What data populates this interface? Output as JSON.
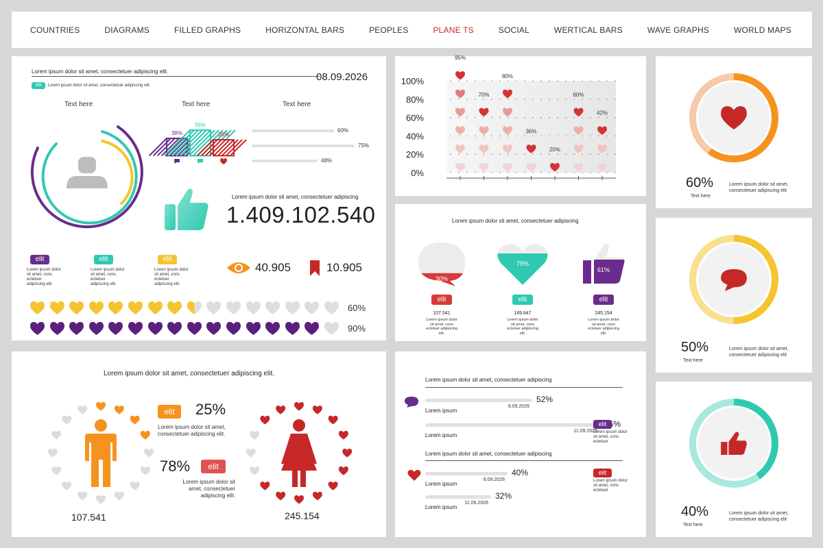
{
  "nav": {
    "items": [
      "COUNTRIES",
      "DIAGRAMS",
      "FILLED GRAPHS",
      "HORIZONTAL BARS",
      "PEOPLES",
      "PLANE TS",
      "SOCIAL",
      "WERTICAL BARS",
      "WAVE GRAPHS",
      "WORLD MAPS"
    ],
    "active_index": 5
  },
  "colors": {
    "purple": "#6a2c8c",
    "teal": "#2fc9b1",
    "yellow": "#f5c431",
    "orange": "#f6931e",
    "red": "#c62828",
    "gray": "#d9d9d9"
  },
  "p1": {
    "header_text": "Lorem ipsum dolor sit amet, consectetuer adipiscing elit.",
    "date": "08.09.2026",
    "badge": "elit",
    "sub_text": "Lorem ipsum dolor sit amet, consectetuer adipiscing elit.",
    "text_here_1": "Text here",
    "text_here_2": "Text here",
    "text_here_3": "Text here",
    "mini_bars": [
      {
        "label": "38%",
        "value": 38,
        "color": "#6a2c8c",
        "icon": "chat-icon"
      },
      {
        "label": "56%",
        "value": 56,
        "color": "#2fc9b1",
        "icon": "thumb-icon"
      },
      {
        "label": "35%",
        "value": 35,
        "color": "#c62828",
        "icon": "heart-icon"
      }
    ],
    "hbars": [
      {
        "label": "60%",
        "value": 60
      },
      {
        "label": "75%",
        "value": 75
      },
      {
        "label": "48%",
        "value": 48
      }
    ],
    "like_text": "Lorem ipsum dolor sit amet, consectetuer adipiscing",
    "big_number": "1.409.102.540",
    "legend": [
      {
        "badge": "elit",
        "color": "#6a2c8c",
        "text": "Lorem ipsum dolor sit amet, cons ectetuer adipiscing elit."
      },
      {
        "badge": "elit",
        "color": "#2fc9b1",
        "text": "Lorem ipsum dolor sit amet, cons ectetuer adipiscing elit."
      },
      {
        "badge": "elit",
        "color": "#f5c431",
        "text": "Lorem ipsum dolor sit amet, cons ectetuer adipiscing elit."
      }
    ],
    "views": "40.905",
    "bookmarks": "10.905",
    "hearts_rows": [
      {
        "label": "60%",
        "filled": 8.5,
        "color": "#f5c431"
      },
      {
        "label": "90%",
        "filled": 15,
        "color": "#5b1f7e"
      }
    ]
  },
  "chart_data": {
    "type": "scatter",
    "title": "",
    "categories": [
      "1",
      "2",
      "3",
      "4",
      "5",
      "6",
      "7"
    ],
    "values": [
      95,
      70,
      80,
      36,
      20,
      60,
      42
    ],
    "value_labels": [
      "95%",
      "70%",
      "80%",
      "36%",
      "20%",
      "60%",
      "42%"
    ],
    "y_ticks": [
      "100%",
      "80%",
      "60%",
      "40%",
      "20%",
      "0%"
    ],
    "ylim": [
      0,
      100
    ],
    "grid": true
  },
  "p2": {
    "title": "Lorem ipsum dolor sit amet, consectetuer adipiscing",
    "items": [
      {
        "shape": "bubble",
        "label": "30%",
        "value": 30,
        "badge": "elit",
        "color": "#d63a3a",
        "number": "107.541",
        "text": "Lorem ipsum dolor sit amet, cons ectetuer adipiscing elit."
      },
      {
        "shape": "heart",
        "label": "75%",
        "value": 75,
        "badge": "elit",
        "color": "#2fc9b1",
        "number": "149.847",
        "text": "Lorem ipsum dolor sit amet, cons ectetuer adipiscing elit."
      },
      {
        "shape": "thumb",
        "label": "61%",
        "value": 61,
        "badge": "elit",
        "color": "#6a2c8c",
        "number": "245.154",
        "text": "Lorem ipsum dolor sit amet, cons ectetuer adipiscing elit."
      }
    ]
  },
  "rings": [
    {
      "value": 60,
      "label": "60%",
      "sub": "Text here",
      "color": "#f6931e",
      "light": "#f6c9a8",
      "icon": "heart-icon",
      "text": "Lorem ipsum dolor sit amet, consectetuer adipiscing elit"
    },
    {
      "value": 50,
      "label": "50%",
      "sub": "Text here",
      "color": "#f5c431",
      "light": "#f8e08e",
      "icon": "chat-icon",
      "text": "Lorem ipsum dolor sit amet, consectetuer adipiscing elit"
    },
    {
      "value": 40,
      "label": "40%",
      "sub": "Text here",
      "color": "#2fc9b1",
      "light": "#a8e8dd",
      "icon": "thumb-icon",
      "text": "Lorem ipsum dolor sit amet, consectetuer adipiscing elit"
    }
  ],
  "p3": {
    "title": "Lorem ipsum dolor sit amet, consectetuer adipiscing elit.",
    "male": {
      "pct": "25%",
      "badge": "elit",
      "text": "Lorem ipsum dolor sit amet, consectetuer adipiscing elit.",
      "number": "107.541",
      "color": "#f6931e"
    },
    "female": {
      "pct": "78%",
      "badge": "elit",
      "text": "Lorem ipsum dolor sit amet, consectetuer adipiscing elit.",
      "number": "245.154",
      "color": "#c62828"
    }
  },
  "p4": {
    "section1_title": "Lorem ipsum dolor sit amet, consectetuer adipiscing",
    "section2_title": "Lorem ipsum dolor sit amet, consectetuer adipiscing",
    "bars": [
      {
        "pct": "52%",
        "value": 52,
        "date": "8.09.2026",
        "label": "Lorem ipsum"
      },
      {
        "pct": "85%",
        "value": 85,
        "date": "11.09.2026",
        "label": "Lorem ipsum",
        "badge": "elit",
        "badge_color": "#6a2c8c",
        "note": "Lorem ipsum dolor sit amet, cons ectetuer"
      },
      {
        "pct": "40%",
        "value": 40,
        "date": "8.09.2026",
        "label": "Lorem ipsum",
        "badge": "elit",
        "badge_color": "#c62828",
        "note": "Lorem ipsum dolor sit amet, cons ectetuer"
      },
      {
        "pct": "32%",
        "value": 32,
        "date": "11.09.2026",
        "label": "Lorem ipsum"
      }
    ]
  }
}
